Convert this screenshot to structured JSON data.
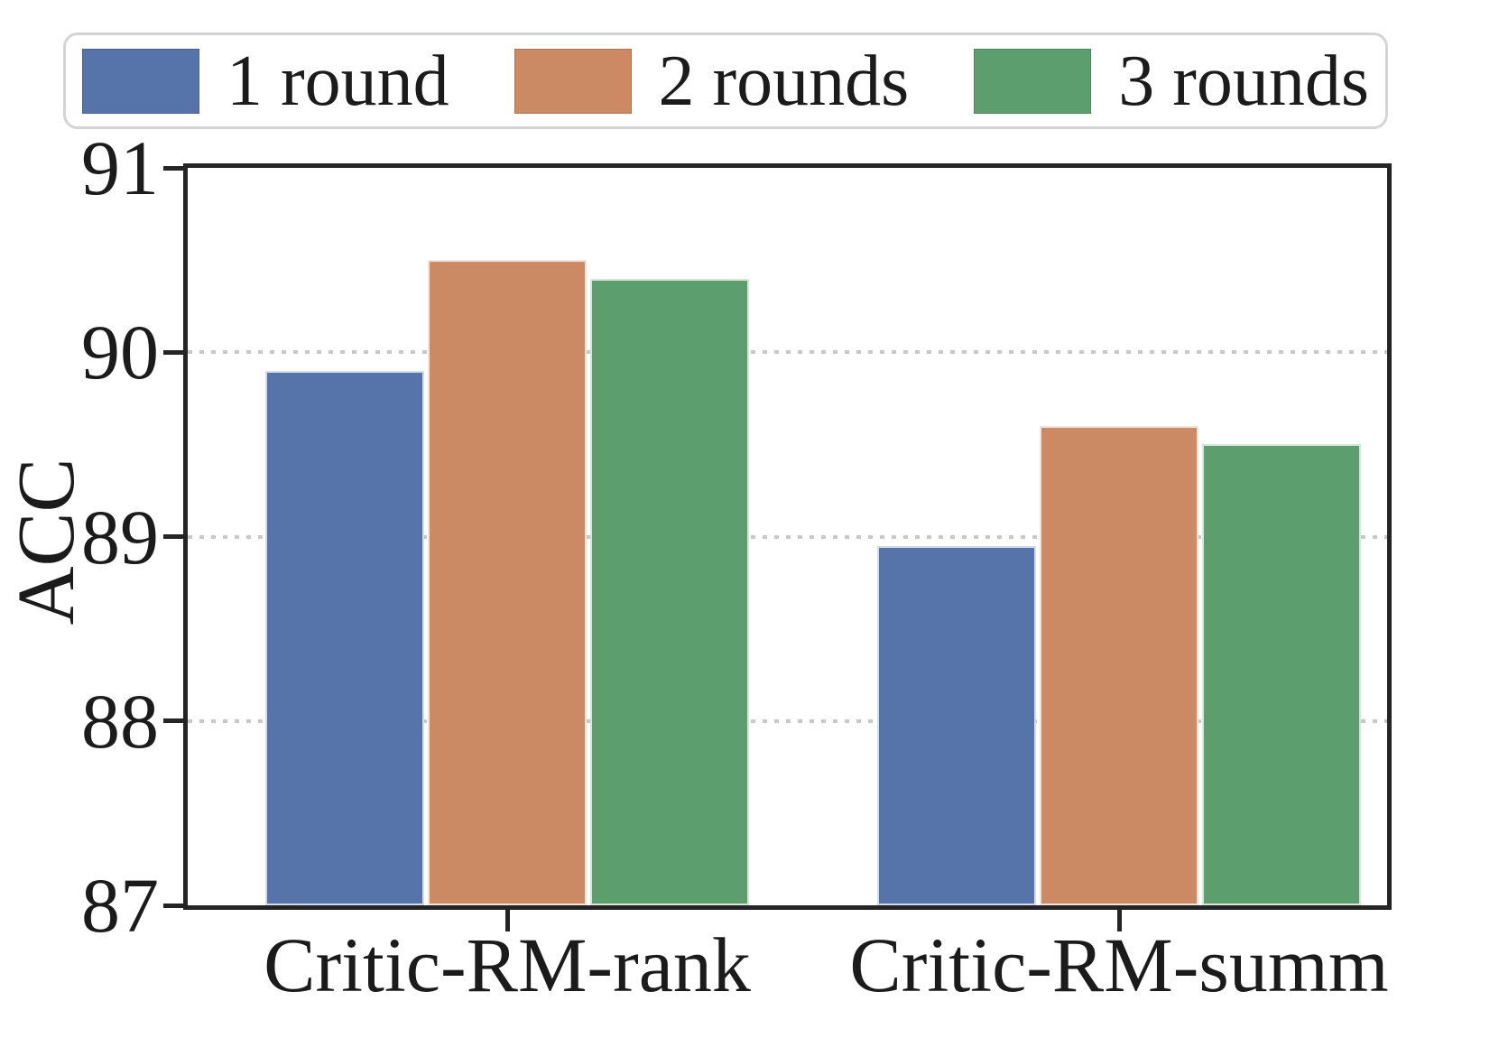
{
  "chart_data": {
    "type": "bar",
    "title": "",
    "xlabel": "",
    "ylabel": "ACC",
    "categories": [
      "Critic-RM-rank",
      "Critic-RM-summ"
    ],
    "series": [
      {
        "name": "1 round",
        "color": "#5674A9",
        "values": [
          89.9,
          88.95
        ]
      },
      {
        "name": "2 rounds",
        "color": "#CB8A63",
        "values": [
          90.5,
          89.6
        ]
      },
      {
        "name": "3 rounds",
        "color": "#5C9E6D",
        "values": [
          90.4,
          89.5
        ]
      }
    ],
    "ylim": [
      87,
      91
    ],
    "yticks": [
      91,
      90,
      89,
      88,
      87
    ],
    "gridlines_at": [
      90,
      89,
      88
    ],
    "grid_style": "dotted",
    "legend_position": "top",
    "colors": {
      "axis": "#242424",
      "grid": "#c8c8c8",
      "legend_border": "#d4d4d4"
    }
  }
}
